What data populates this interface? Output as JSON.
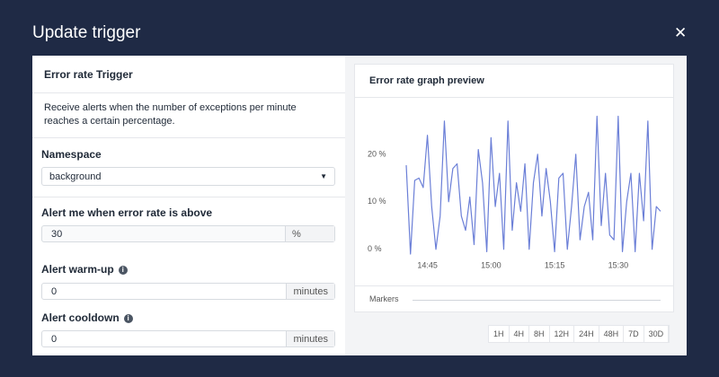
{
  "header": {
    "title": "Update trigger",
    "close": "✕"
  },
  "form": {
    "title": "Error rate Trigger",
    "description": "Receive alerts when the number of exceptions per minute reaches a certain percentage.",
    "namespace": {
      "label": "Namespace",
      "value": "background"
    },
    "threshold": {
      "label": "Alert me when error rate is above",
      "value": "30",
      "unit": "%"
    },
    "warmup": {
      "label": "Alert warm-up",
      "info": "i",
      "value": "0",
      "unit": "minutes"
    },
    "cooldown": {
      "label": "Alert cooldown",
      "info": "i",
      "value": "0",
      "unit": "minutes"
    }
  },
  "preview": {
    "title": "Error rate graph preview",
    "markers": "Markers",
    "ranges": [
      "1H",
      "4H",
      "8H",
      "12H",
      "24H",
      "48H",
      "7D",
      "30D"
    ]
  },
  "chart_data": {
    "type": "line",
    "x": [
      "14:40",
      "14:41",
      "14:42",
      "14:43",
      "14:44",
      "14:45",
      "14:46",
      "14:47",
      "14:48",
      "14:49",
      "14:50",
      "14:51",
      "14:52",
      "14:53",
      "14:54",
      "14:55",
      "14:56",
      "14:57",
      "14:58",
      "14:59",
      "15:00",
      "15:01",
      "15:02",
      "15:03",
      "15:04",
      "15:05",
      "15:06",
      "15:07",
      "15:08",
      "15:09",
      "15:10",
      "15:11",
      "15:12",
      "15:13",
      "15:14",
      "15:15",
      "15:16",
      "15:17",
      "15:18",
      "15:19",
      "15:20",
      "15:21",
      "15:22",
      "15:23",
      "15:24",
      "15:25",
      "15:26",
      "15:27",
      "15:28",
      "15:29",
      "15:30",
      "15:31",
      "15:32",
      "15:33",
      "15:34",
      "15:35",
      "15:36",
      "15:37",
      "15:38",
      "15:39",
      "15:40"
    ],
    "series": [
      {
        "color": "#6b7fd7",
        "values": [
          17.7,
          -1,
          14.5,
          15,
          13,
          24,
          9,
          0,
          7,
          27,
          10,
          17,
          18,
          7,
          4,
          11,
          1,
          21,
          14,
          -0.5,
          23.5,
          9,
          16,
          0,
          27,
          4,
          14,
          8,
          18,
          0,
          14,
          20,
          7,
          17,
          10,
          -0.5,
          15,
          16,
          0,
          9,
          20,
          2,
          9,
          12,
          2,
          28,
          5,
          16,
          3,
          2,
          28,
          -0.5,
          10,
          16,
          -0.5,
          16,
          6,
          27,
          0,
          9,
          8
        ]
      }
    ],
    "xlim": [
      "14:40",
      "15:40"
    ],
    "xticks": [
      "14:45",
      "15:00",
      "15:15",
      "15:30"
    ],
    "ylim": [
      -2.5,
      31.5
    ],
    "yticks": [
      {
        "value": 0,
        "label": "0 %"
      },
      {
        "value": 10,
        "label": "10 %"
      },
      {
        "value": 20,
        "label": "20 %"
      }
    ]
  }
}
